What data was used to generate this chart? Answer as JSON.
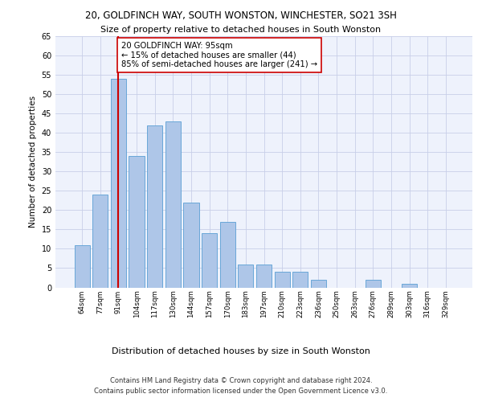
{
  "title1": "20, GOLDFINCH WAY, SOUTH WONSTON, WINCHESTER, SO21 3SH",
  "title2": "Size of property relative to detached houses in South Wonston",
  "xlabel": "Distribution of detached houses by size in South Wonston",
  "ylabel": "Number of detached properties",
  "bar_labels": [
    "64sqm",
    "77sqm",
    "91sqm",
    "104sqm",
    "117sqm",
    "130sqm",
    "144sqm",
    "157sqm",
    "170sqm",
    "183sqm",
    "197sqm",
    "210sqm",
    "223sqm",
    "236sqm",
    "250sqm",
    "263sqm",
    "276sqm",
    "289sqm",
    "303sqm",
    "316sqm",
    "329sqm"
  ],
  "bar_values": [
    11,
    24,
    54,
    34,
    42,
    43,
    22,
    14,
    17,
    6,
    6,
    4,
    4,
    2,
    0,
    0,
    2,
    0,
    1,
    0,
    0
  ],
  "bar_color": "#aec6e8",
  "bar_edgecolor": "#5a9fd4",
  "vline_x": 2,
  "vline_color": "#cc0000",
  "annotation_text": "20 GOLDFINCH WAY: 95sqm\n← 15% of detached houses are smaller (44)\n85% of semi-detached houses are larger (241) →",
  "annotation_box_color": "#ffffff",
  "annotation_box_edgecolor": "#cc0000",
  "ylim": [
    0,
    65
  ],
  "yticks": [
    0,
    5,
    10,
    15,
    20,
    25,
    30,
    35,
    40,
    45,
    50,
    55,
    60,
    65
  ],
  "footnote1": "Contains HM Land Registry data © Crown copyright and database right 2024.",
  "footnote2": "Contains public sector information licensed under the Open Government Licence v3.0.",
  "bg_color": "#eef2fc",
  "grid_color": "#c8cfe8"
}
